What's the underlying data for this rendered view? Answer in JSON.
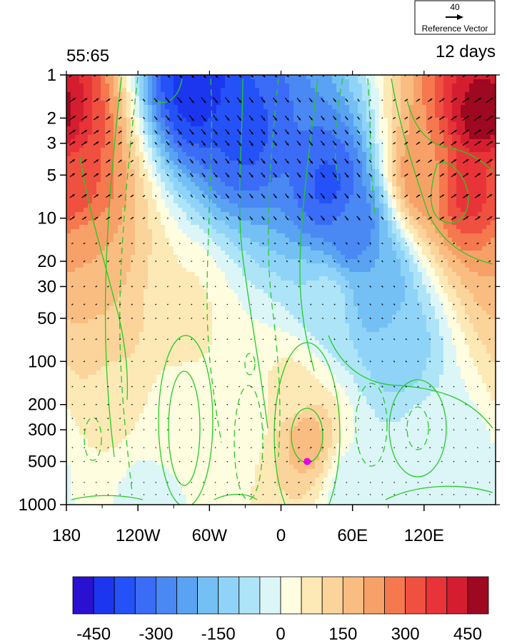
{
  "chart_data": {
    "type": "heatmap",
    "title_left": "55:65",
    "title_right": "12 days",
    "x_ticks": [
      "180",
      "120W",
      "60W",
      "0",
      "60E",
      "120E"
    ],
    "x_tick_values": [
      -180,
      -120,
      -60,
      0,
      60,
      120
    ],
    "xlim": [
      -180,
      180
    ],
    "y_ticks": [
      "1",
      "2",
      "3",
      "5",
      "10",
      "20",
      "30",
      "50",
      "100",
      "200",
      "300",
      "500",
      "1000"
    ],
    "y_tick_values": [
      1,
      2,
      3,
      5,
      10,
      20,
      30,
      50,
      100,
      200,
      300,
      500,
      1000
    ],
    "ylim": [
      1,
      1000
    ],
    "y_scale": "log",
    "reference_vector": {
      "magnitude": "40",
      "label": "Reference Vector"
    },
    "marker": {
      "lon": 22,
      "level_hPa": 500,
      "color": "#e600e6"
    },
    "colorbar": {
      "tick_labels": [
        "-450",
        "-300",
        "-150",
        "0",
        "150",
        "300",
        "450"
      ],
      "tick_values": [
        -450,
        -300,
        -150,
        0,
        150,
        300,
        450
      ],
      "levels": [
        -500,
        -450,
        -400,
        -350,
        -300,
        -250,
        -200,
        -150,
        -100,
        -50,
        0,
        50,
        100,
        150,
        200,
        250,
        300,
        350,
        400,
        450,
        500
      ],
      "colors": [
        "#2a10d0",
        "#1c36f0",
        "#2452f8",
        "#3a6cf8",
        "#4a88f4",
        "#5aa2f2",
        "#74c0f4",
        "#8fd4f8",
        "#aee4f8",
        "#dcf6f8",
        "#fffde0",
        "#fde9b6",
        "#fbd49c",
        "#f9bd82",
        "#f7a168",
        "#f5784e",
        "#ef5040",
        "#e83438",
        "#d41e30",
        "#9e0820"
      ]
    },
    "field_centers": [
      {
        "lon": 168,
        "level": 2,
        "value": 480
      },
      {
        "lon": 160,
        "level": 6,
        "value": 380
      },
      {
        "lon": 120,
        "level": 5,
        "value": 240
      },
      {
        "lon": -175,
        "level": 6,
        "value": 320
      },
      {
        "lon": -165,
        "level": 20,
        "value": 200
      },
      {
        "lon": -150,
        "level": 60,
        "value": 150
      },
      {
        "lon": -140,
        "level": 160,
        "value": 80
      },
      {
        "lon": -80,
        "level": 50,
        "value": 60
      },
      {
        "lon": -70,
        "level": 1.2,
        "value": -430
      },
      {
        "lon": -30,
        "level": 2.5,
        "value": -360
      },
      {
        "lon": 40,
        "level": 6,
        "value": -360
      },
      {
        "lon": 60,
        "level": 12,
        "value": -290
      },
      {
        "lon": 80,
        "level": 30,
        "value": -200
      },
      {
        "lon": 100,
        "level": 80,
        "value": -140
      },
      {
        "lon": 40,
        "level": 40,
        "value": -80
      },
      {
        "lon": 20,
        "level": 350,
        "value": 180
      },
      {
        "lon": 10,
        "level": 160,
        "value": 60
      },
      {
        "lon": -30,
        "level": 250,
        "value": 30
      },
      {
        "lon": -90,
        "level": 300,
        "value": 15
      },
      {
        "lon": 120,
        "level": 350,
        "value": -40
      },
      {
        "lon": 150,
        "level": 500,
        "value": -25
      },
      {
        "lon": -110,
        "level": 900,
        "value": -20
      },
      {
        "lon": 60,
        "level": 800,
        "value": -30
      }
    ]
  }
}
